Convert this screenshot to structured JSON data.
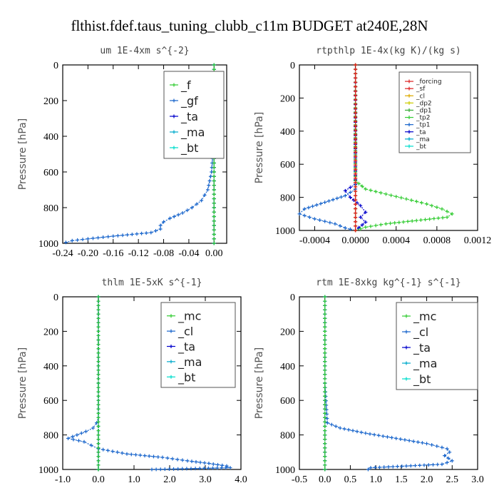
{
  "title": "flthist.fdef.taus_tuning_clubb_c11m  BUDGET at240E,28N",
  "chart_data": [
    {
      "type": "line",
      "title": "um  1E-4xm s^{-2}",
      "ylabel": "Pressure [hPa]",
      "xlim": [
        -0.24,
        0.02
      ],
      "ylim": [
        1000,
        0
      ],
      "xticks": [
        -0.24,
        -0.2,
        -0.16,
        -0.12,
        -0.08,
        -0.04,
        0.0
      ],
      "xtick_labels": [
        "-0.24",
        "-0.20",
        "-0.16",
        "-0.12",
        "-0.08",
        "-0.04",
        "0.00"
      ],
      "yticks": [
        0,
        200,
        400,
        600,
        800,
        1000
      ],
      "ytick_labels": [
        "0",
        "200",
        "400",
        "600",
        "800",
        "1000"
      ],
      "legend_position": "top-right",
      "series": [
        {
          "name": "_f",
          "color": "#33cc33",
          "x": [
            0,
            0,
            0,
            0,
            0,
            0,
            0,
            0,
            0,
            0,
            0
          ],
          "y": [
            0,
            100,
            200,
            300,
            400,
            500,
            600,
            700,
            800,
            900,
            1000
          ]
        },
        {
          "name": "_gf",
          "color": "#1a66cc",
          "x": [
            0,
            0,
            0,
            0,
            0,
            -0.002,
            -0.004,
            -0.01,
            -0.02,
            -0.035,
            -0.05,
            -0.07,
            -0.08,
            -0.085,
            -0.085,
            -0.1,
            -0.16,
            -0.2,
            -0.225,
            -0.235
          ],
          "y": [
            0,
            100,
            200,
            300,
            400,
            500,
            600,
            700,
            760,
            800,
            830,
            860,
            880,
            900,
            920,
            940,
            960,
            975,
            985,
            995
          ]
        },
        {
          "name": "_ta",
          "color": "#0000cc",
          "x": [
            0,
            0,
            0
          ],
          "y": [
            0,
            500,
            1000
          ]
        },
        {
          "name": "_ma",
          "color": "#00aacc",
          "x": [
            0,
            0,
            0
          ],
          "y": [
            0,
            500,
            1000
          ]
        },
        {
          "name": "_bt",
          "color": "#00ddcc",
          "x": [
            0,
            0,
            0
          ],
          "y": [
            0,
            500,
            1000
          ]
        }
      ]
    },
    {
      "type": "line",
      "title": "rtpthlp  1E-4x(kg K)/(kg s)",
      "ylabel": "Pressure [hPa]",
      "xlim": [
        -0.00055,
        0.0012
      ],
      "ylim": [
        1000,
        0
      ],
      "xticks": [
        -0.0004,
        0.0,
        0.0004,
        0.0008,
        0.0012
      ],
      "xtick_labels": [
        "-0.0004",
        "0.0000",
        "0.0004",
        "0.0008",
        "0.0012"
      ],
      "yticks": [
        0,
        200,
        400,
        600,
        800,
        1000
      ],
      "ytick_labels": [
        "0",
        "200",
        "400",
        "600",
        "800",
        "1000"
      ],
      "legend_position": "top-right",
      "series": [
        {
          "name": "_forcing",
          "color": "#dd2222",
          "x": [
            0,
            0,
            0
          ],
          "y": [
            0,
            500,
            1000
          ]
        },
        {
          "name": "_sf",
          "color": "#dd2222",
          "x": [
            0,
            0,
            0
          ],
          "y": [
            0,
            500,
            1000
          ]
        },
        {
          "name": "_cl",
          "color": "#ddaa00",
          "x": [
            0,
            0,
            0
          ],
          "y": [
            0,
            500,
            1000
          ]
        },
        {
          "name": "_dp2",
          "color": "#cccc00",
          "x": [
            0,
            0,
            0
          ],
          "y": [
            0,
            500,
            1000
          ]
        },
        {
          "name": "_dp1",
          "color": "#33aa33",
          "x": [
            0,
            0,
            0
          ],
          "y": [
            0,
            500,
            1000
          ]
        },
        {
          "name": "_tp2",
          "color": "#33cc33",
          "x": [
            0,
            0,
            0.0001,
            0.0003,
            0.0005,
            0.0007,
            0.00085,
            0.00095,
            0.0009,
            0.0006,
            0.0003,
            0.0001,
            0
          ],
          "y": [
            0,
            700,
            750,
            780,
            810,
            840,
            870,
            900,
            920,
            940,
            960,
            980,
            1000
          ]
        },
        {
          "name": "_tp1",
          "color": "#1a66cc",
          "x": [
            0,
            0,
            -0.0001,
            -0.0003,
            -0.0005,
            -0.00055,
            -0.0004,
            -0.0002,
            -0.0001,
            0
          ],
          "y": [
            0,
            750,
            790,
            830,
            870,
            900,
            930,
            960,
            985,
            1000
          ]
        },
        {
          "name": "_ta",
          "color": "#0000cc",
          "x": [
            0,
            0,
            -0.0001,
            -5e-05,
            5e-05,
            0.0001,
            5e-05,
            0.0001,
            0
          ],
          "y": [
            0,
            720,
            760,
            800,
            850,
            890,
            920,
            950,
            1000
          ]
        },
        {
          "name": "_ma",
          "color": "#00aacc",
          "x": [
            0,
            0,
            0
          ],
          "y": [
            0,
            500,
            1000
          ]
        },
        {
          "name": "_bt",
          "color": "#00ddcc",
          "x": [
            0,
            0,
            0
          ],
          "y": [
            0,
            500,
            1000
          ]
        }
      ]
    },
    {
      "type": "line",
      "title": "thlm  1E-5xK s^{-1}",
      "ylabel": "Pressure [hPa]",
      "xlim": [
        -1.0,
        4.0
      ],
      "ylim": [
        1000,
        0
      ],
      "xticks": [
        -1.0,
        0.0,
        1.0,
        2.0,
        3.0,
        4.0
      ],
      "xtick_labels": [
        "-1.0",
        "0.0",
        "1.0",
        "2.0",
        "3.0",
        "4.0"
      ],
      "yticks": [
        0,
        200,
        400,
        600,
        800,
        1000
      ],
      "ytick_labels": [
        "0",
        "200",
        "400",
        "600",
        "800",
        "1000"
      ],
      "legend_position": "top-right",
      "series": [
        {
          "name": "_mc",
          "color": "#33cc33",
          "x": [
            0,
            0,
            0
          ],
          "y": [
            0,
            500,
            1000
          ]
        },
        {
          "name": "_cl",
          "color": "#1a66cc",
          "x": [
            0,
            0,
            0,
            -0.05,
            -0.15,
            -0.35,
            -0.6,
            -0.85,
            -0.4,
            -0.2,
            0,
            0.8,
            1.8,
            2.5,
            3.1,
            3.6,
            3.7,
            1.5
          ],
          "y": [
            0,
            500,
            700,
            730,
            760,
            780,
            800,
            820,
            840,
            860,
            880,
            910,
            930,
            950,
            965,
            980,
            990,
            1000
          ]
        },
        {
          "name": "_ta",
          "color": "#0000cc",
          "x": [
            0,
            0,
            0
          ],
          "y": [
            0,
            500,
            1000
          ]
        },
        {
          "name": "_ma",
          "color": "#00aacc",
          "x": [
            0,
            0,
            0
          ],
          "y": [
            0,
            500,
            1000
          ]
        },
        {
          "name": "_bt",
          "color": "#00ddcc",
          "x": [
            0,
            0,
            0
          ],
          "y": [
            0,
            500,
            1000
          ]
        }
      ]
    },
    {
      "type": "line",
      "title": "rtm  1E-8xkg kg^{-1} s^{-1}",
      "ylabel": "Pressure [hPa]",
      "xlim": [
        -0.5,
        3.0
      ],
      "ylim": [
        1000,
        0
      ],
      "xticks": [
        -0.5,
        0.0,
        0.5,
        1.0,
        1.5,
        2.0,
        2.5,
        3.0
      ],
      "xtick_labels": [
        "-0.5",
        "0.0",
        "0.5",
        "1.0",
        "1.5",
        "2.0",
        "2.5",
        "3.0"
      ],
      "yticks": [
        0,
        200,
        400,
        600,
        800,
        1000
      ],
      "ytick_labels": [
        "0",
        "200",
        "400",
        "600",
        "800",
        "1000"
      ],
      "legend_position": "top-right",
      "series": [
        {
          "name": "_mc",
          "color": "#33cc33",
          "x": [
            0,
            0,
            0
          ],
          "y": [
            0,
            500,
            1000
          ]
        },
        {
          "name": "_cl",
          "color": "#1a66cc",
          "x": [
            0,
            0,
            0.05,
            0.3,
            0.8,
            1.4,
            2.0,
            2.4,
            2.45,
            2.35,
            2.5,
            2.3,
            0.9,
            0.85
          ],
          "y": [
            0,
            500,
            730,
            760,
            790,
            820,
            850,
            880,
            900,
            920,
            950,
            970,
            990,
            1000
          ]
        },
        {
          "name": "_ta",
          "color": "#0000cc",
          "x": [
            0,
            0,
            0
          ],
          "y": [
            0,
            500,
            1000
          ]
        },
        {
          "name": "_ma",
          "color": "#00aacc",
          "x": [
            0,
            0,
            0
          ],
          "y": [
            0,
            500,
            1000
          ]
        },
        {
          "name": "_bt",
          "color": "#00ddcc",
          "x": [
            0,
            0,
            0
          ],
          "y": [
            0,
            500,
            1000
          ]
        }
      ]
    }
  ]
}
